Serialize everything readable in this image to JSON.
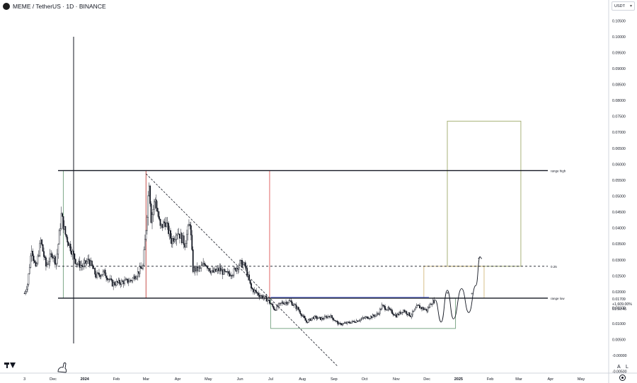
{
  "header": {
    "title": "MEME / TetherUS · 1D · BINANCE"
  },
  "currency_selector": {
    "value": "USDT"
  },
  "scale_controls": {
    "auto_label": "A",
    "log_label": "L"
  },
  "icons": {
    "symbol": "meme-coin-icon",
    "logo": "tradingview-logo-icon",
    "mascot": "dino-icon",
    "settings": "gear-icon",
    "dropdown": "chevron-down-icon"
  },
  "colors": {
    "candle": "#131722",
    "level_line": "#131722",
    "trendline": "#131722",
    "red_box": "#e06666",
    "green_box": "#7fa88a",
    "olive_box": "#a9b27a",
    "tan_box": "#d6c08a",
    "blue_line": "#4a5ac8",
    "path": "#131722"
  },
  "chart_data": {
    "type": "candlestick",
    "symbol": "MEME / TetherUS",
    "timeframe": "1D",
    "exchange": "BINANCE",
    "price_axis": {
      "ticks": [
        0.105,
        0.1,
        0.095,
        0.09,
        0.085,
        0.08,
        0.075,
        0.07,
        0.065,
        0.06,
        0.055,
        0.05,
        0.045,
        0.04,
        0.035,
        0.03,
        0.025,
        0.02,
        0.015,
        0.01,
        0.005,
        0.0,
        -0.005
      ],
      "tick_labels": [
        "0.10500",
        "0.10000",
        "0.09500",
        "0.09000",
        "0.08500",
        "0.08000",
        "0.07500",
        "0.07000",
        "0.06500",
        "0.06000",
        "0.05500",
        "0.05000",
        "0.04500",
        "0.04000",
        "0.03500",
        "0.03000",
        "0.02500",
        "0.02000",
        "0.01500",
        "0.01000",
        "0.00500",
        "-0.00000",
        "-0.00500"
      ],
      "range": [
        -0.0055,
        0.1075
      ]
    },
    "time_axis": {
      "labels": [
        "3",
        "Dec",
        "2024",
        "Feb",
        "Mar",
        "Apr",
        "May",
        "Jun",
        "Jul",
        "Aug",
        "Sep",
        "Oct",
        "Nov",
        "Dec",
        "2025",
        "Feb",
        "Mar",
        "Apr",
        "May"
      ],
      "dates": [
        "2023-11-03",
        "2023-12-01",
        "2024-01-01",
        "2024-02-01",
        "2024-03-01",
        "2024-04-01",
        "2024-05-01",
        "2024-06-01",
        "2024-07-01",
        "2024-08-01",
        "2024-09-01",
        "2024-10-01",
        "2024-11-01",
        "2024-12-01",
        "2025-01-01",
        "2025-02-01",
        "2025-03-01",
        "2025-04-01",
        "2025-05-01"
      ],
      "bold": [
        "2024",
        "2025"
      ],
      "range": [
        "2023-10-10",
        "2025-05-28"
      ]
    },
    "price_anchors": [
      {
        "date": "2023-11-03",
        "price": 0.0195
      },
      {
        "date": "2023-11-06",
        "price": 0.0225
      },
      {
        "date": "2023-11-10",
        "price": 0.034
      },
      {
        "date": "2023-11-14",
        "price": 0.027
      },
      {
        "date": "2023-11-19",
        "price": 0.036
      },
      {
        "date": "2023-11-24",
        "price": 0.028
      },
      {
        "date": "2023-11-30",
        "price": 0.032
      },
      {
        "date": "2023-12-04",
        "price": 0.029
      },
      {
        "date": "2023-12-09",
        "price": 0.044
      },
      {
        "date": "2023-12-13",
        "price": 0.038
      },
      {
        "date": "2023-12-19",
        "price": 0.033
      },
      {
        "date": "2023-12-24",
        "price": 0.029
      },
      {
        "date": "2023-12-30",
        "price": 0.028
      },
      {
        "date": "2024-01-05",
        "price": 0.03
      },
      {
        "date": "2024-01-12",
        "price": 0.025
      },
      {
        "date": "2024-01-20",
        "price": 0.026
      },
      {
        "date": "2024-01-28",
        "price": 0.0225
      },
      {
        "date": "2024-02-06",
        "price": 0.023
      },
      {
        "date": "2024-02-15",
        "price": 0.0235
      },
      {
        "date": "2024-02-22",
        "price": 0.026
      },
      {
        "date": "2024-02-27",
        "price": 0.028
      },
      {
        "date": "2024-03-01",
        "price": 0.04
      },
      {
        "date": "2024-03-04",
        "price": 0.055
      },
      {
        "date": "2024-03-06",
        "price": 0.043
      },
      {
        "date": "2024-03-10",
        "price": 0.049
      },
      {
        "date": "2024-03-15",
        "price": 0.04
      },
      {
        "date": "2024-03-20",
        "price": 0.042
      },
      {
        "date": "2024-03-26",
        "price": 0.036
      },
      {
        "date": "2024-04-01",
        "price": 0.039
      },
      {
        "date": "2024-04-08",
        "price": 0.035
      },
      {
        "date": "2024-04-13",
        "price": 0.042
      },
      {
        "date": "2024-04-16",
        "price": 0.027
      },
      {
        "date": "2024-04-22",
        "price": 0.027
      },
      {
        "date": "2024-04-28",
        "price": 0.029
      },
      {
        "date": "2024-05-05",
        "price": 0.026
      },
      {
        "date": "2024-05-12",
        "price": 0.027
      },
      {
        "date": "2024-05-18",
        "price": 0.0255
      },
      {
        "date": "2024-05-25",
        "price": 0.026
      },
      {
        "date": "2024-06-01",
        "price": 0.029
      },
      {
        "date": "2024-06-06",
        "price": 0.028
      },
      {
        "date": "2024-06-12",
        "price": 0.021
      },
      {
        "date": "2024-06-20",
        "price": 0.019
      },
      {
        "date": "2024-06-28",
        "price": 0.0175
      },
      {
        "date": "2024-07-05",
        "price": 0.0145
      },
      {
        "date": "2024-07-12",
        "price": 0.0165
      },
      {
        "date": "2024-07-20",
        "price": 0.017
      },
      {
        "date": "2024-07-28",
        "price": 0.0145
      },
      {
        "date": "2024-08-05",
        "price": 0.0105
      },
      {
        "date": "2024-08-12",
        "price": 0.012
      },
      {
        "date": "2024-08-20",
        "price": 0.0115
      },
      {
        "date": "2024-08-28",
        "price": 0.0125
      },
      {
        "date": "2024-09-06",
        "price": 0.0098
      },
      {
        "date": "2024-09-14",
        "price": 0.0102
      },
      {
        "date": "2024-09-22",
        "price": 0.0108
      },
      {
        "date": "2024-10-01",
        "price": 0.0118
      },
      {
        "date": "2024-10-08",
        "price": 0.0122
      },
      {
        "date": "2024-10-14",
        "price": 0.013
      },
      {
        "date": "2024-10-18",
        "price": 0.0155
      },
      {
        "date": "2024-10-24",
        "price": 0.0145
      },
      {
        "date": "2024-11-01",
        "price": 0.0125
      },
      {
        "date": "2024-11-08",
        "price": 0.0142
      },
      {
        "date": "2024-11-15",
        "price": 0.0125
      },
      {
        "date": "2024-11-22",
        "price": 0.0155
      },
      {
        "date": "2024-12-01",
        "price": 0.0142
      },
      {
        "date": "2024-12-05",
        "price": 0.0165
      },
      {
        "date": "2024-12-08",
        "price": 0.0171
      }
    ],
    "last_price_label": "0.01709",
    "change_label": "+1,609.00%",
    "countdown_label": "01:50:45",
    "levels": [
      {
        "name": "range high",
        "price": 0.058,
        "style": "solid"
      },
      {
        "name": "range low",
        "price": 0.018,
        "style": "solid"
      },
      {
        "name": "0.25",
        "price": 0.028,
        "style": "dashed"
      }
    ],
    "trendline": {
      "from": {
        "date": "2024-03-01",
        "price": 0.057
      },
      "to": {
        "date": "2024-09-05",
        "price": -0.0035
      }
    },
    "boxes": [
      {
        "color": "green",
        "from": "2023-12-11",
        "to": "2024-03-01",
        "price_top": 0.058,
        "price_bottom": 0.018
      },
      {
        "color": "red",
        "from": "2024-03-01",
        "to": "2024-06-30",
        "price_top": 0.058,
        "price_bottom": 0.018
      },
      {
        "color": "green",
        "from": "2024-07-01",
        "to": "2024-12-29",
        "price_top": 0.018,
        "price_bottom": 0.0085
      },
      {
        "color": "olive",
        "from": "2024-12-21",
        "to": "2025-03-03",
        "price_top": 0.0735,
        "price_bottom": 0.028
      },
      {
        "color": "tan",
        "from": "2024-11-28",
        "to": "2025-01-26",
        "price_top": 0.028,
        "price_bottom": 0.018
      }
    ],
    "blue_line": {
      "from": "2024-07-01",
      "to": "2024-12-03",
      "price": 0.018
    },
    "projection_path": [
      {
        "date": "2024-12-09",
        "price": 0.0175
      },
      {
        "date": "2024-12-15",
        "price": 0.0105
      },
      {
        "date": "2024-12-21",
        "price": 0.0205
      },
      {
        "date": "2024-12-27",
        "price": 0.0115
      },
      {
        "date": "2025-01-04",
        "price": 0.021
      },
      {
        "date": "2025-01-11",
        "price": 0.0135
      },
      {
        "date": "2025-01-18",
        "price": 0.022
      },
      {
        "date": "2025-01-22",
        "price": 0.031
      }
    ],
    "markers": [
      {
        "symbol": "+",
        "date": "2024-12-21",
        "price": 0.0195
      },
      {
        "symbol": "+",
        "date": "2025-01-14",
        "price": 0.0193
      }
    ]
  }
}
